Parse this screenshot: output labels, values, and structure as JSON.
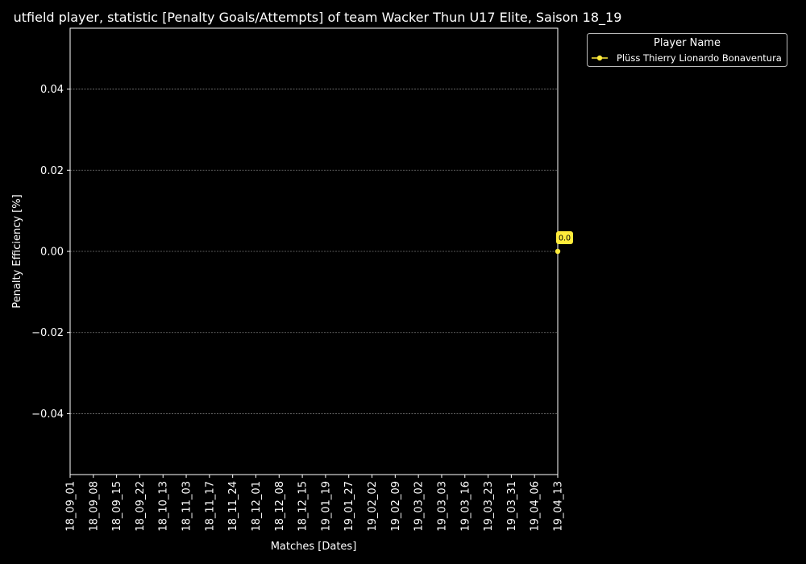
{
  "chart_data": {
    "type": "line",
    "title": "utfield player, statistic [Penalty Goals/Attempts] of team Wacker Thun U17 Elite, Saison 18_19",
    "xlabel": "Matches [Dates]",
    "ylabel": "Penalty Efficiency [%]",
    "categories": [
      "18_09_01",
      "18_09_08",
      "18_09_15",
      "18_09_22",
      "18_10_13",
      "18_11_03",
      "18_11_17",
      "18_11_24",
      "18_12_01",
      "18_12_08",
      "18_12_15",
      "19_01_19",
      "19_01_27",
      "19_02_02",
      "19_02_09",
      "19_03_02",
      "19_03_03",
      "19_03_16",
      "19_03_23",
      "19_03_31",
      "19_04_06",
      "19_04_13"
    ],
    "ylim": [
      -0.055,
      0.055
    ],
    "yticks": [
      -0.04,
      -0.02,
      0.0,
      0.02,
      0.04
    ],
    "ytick_labels": [
      "−0.04",
      "−0.02",
      "0.00",
      "0.02",
      "0.04"
    ],
    "grid": "horizontal",
    "legend": {
      "title": "Player Name",
      "placement": "outside-top-right"
    },
    "series": [
      {
        "name": "Plüss Thierry Lionardo Bonaventura",
        "color": "#ffeb3b",
        "points": [
          {
            "x": "19_04_13",
            "y": 0.0,
            "label": "0.0"
          }
        ]
      }
    ]
  }
}
